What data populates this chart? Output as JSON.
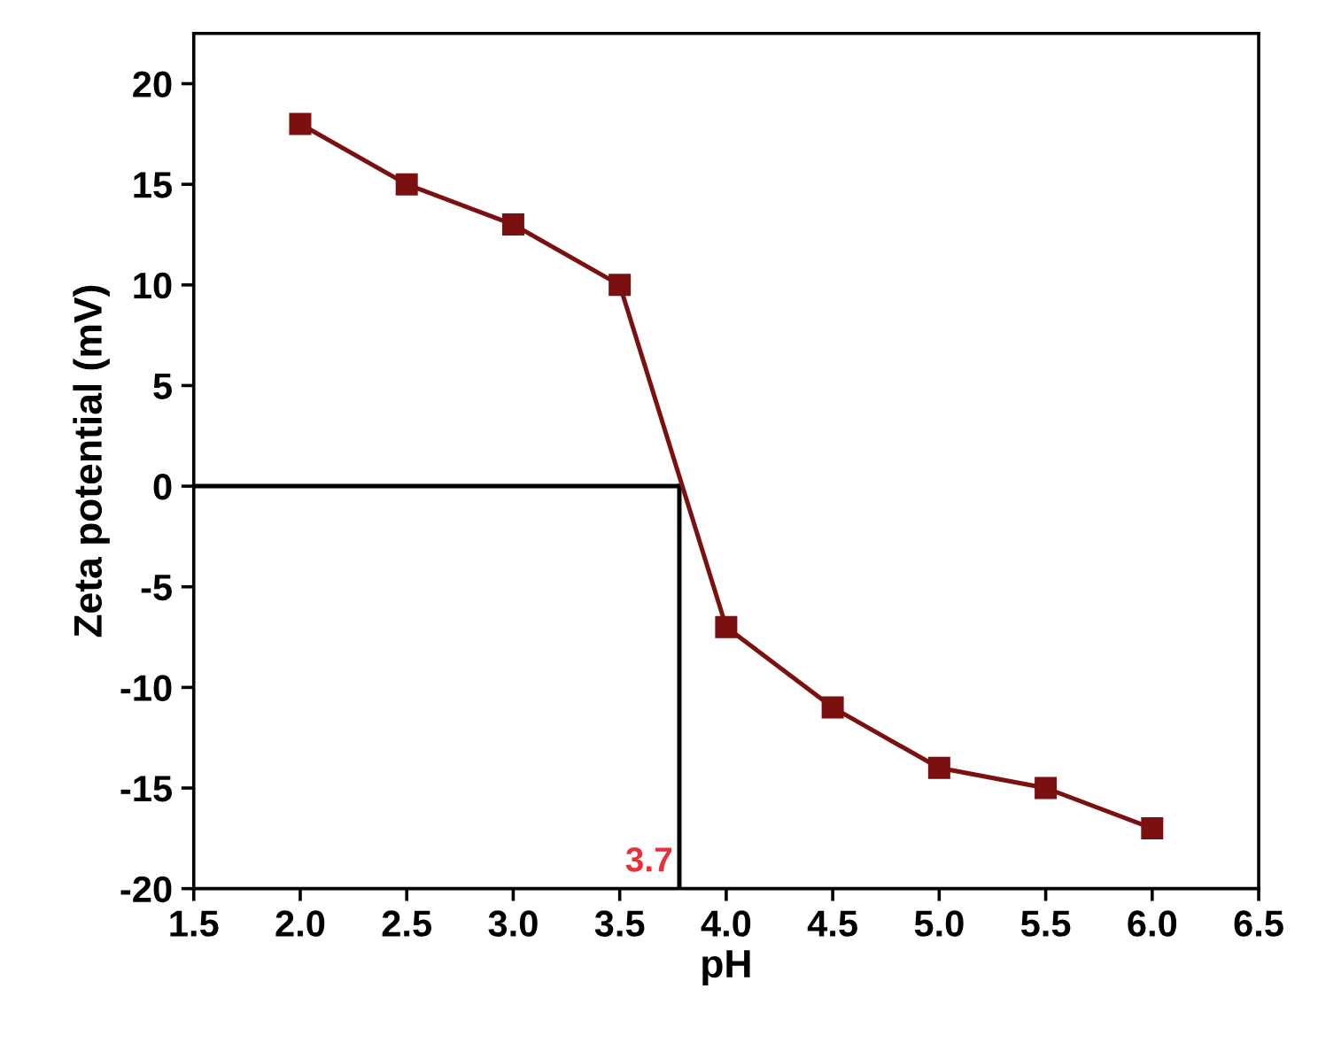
{
  "chart_data": {
    "type": "line",
    "xlabel": "pH",
    "ylabel": "Zeta potential (mV)",
    "x": [
      2.0,
      2.5,
      3.0,
      3.5,
      4.0,
      4.5,
      5.0,
      5.5,
      6.0
    ],
    "series": [
      {
        "color": "#7b1010",
        "values": [
          18,
          15,
          13,
          10,
          -7,
          -11,
          -14,
          -15,
          -17
        ]
      }
    ],
    "xlim": [
      1.5,
      6.5
    ],
    "xticks": [
      {
        "value": 1.5,
        "label": "1.5"
      },
      {
        "value": 2,
        "label": "2.0"
      },
      {
        "value": 2.5,
        "label": "2.5"
      },
      {
        "value": 3,
        "label": "3.0"
      },
      {
        "value": 3.5,
        "label": "3.5"
      },
      {
        "value": 4,
        "label": "4.0"
      },
      {
        "value": 4.5,
        "label": "4.5"
      },
      {
        "value": 5,
        "label": "5.0"
      },
      {
        "value": 5.5,
        "label": "5.5"
      },
      {
        "value": 6,
        "label": "6.0"
      },
      {
        "value": 6.5,
        "label": "6.5"
      }
    ],
    "ylim": [
      -20,
      22.5
    ],
    "yticks": [
      -20,
      -15,
      -10,
      -5,
      0,
      5,
      10,
      15,
      20
    ],
    "ref_lines": [
      {
        "axis": "y",
        "value": 0,
        "color": "#000000"
      },
      {
        "axis": "x",
        "value": 3.78,
        "color": "#000000"
      }
    ],
    "annotations": [
      "3.7"
    ],
    "marker": "square",
    "line_style": "solid",
    "grid": false
  }
}
